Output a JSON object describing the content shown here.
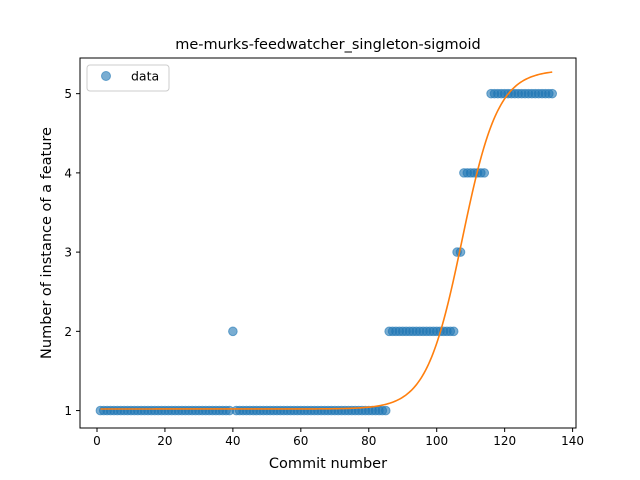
{
  "chart_data": {
    "type": "scatter",
    "title": "me-murks-feedwatcher_singleton-sigmoid",
    "xlabel": "Commit number",
    "ylabel": "Number of instance of a feature",
    "xlim": [
      -5,
      141
    ],
    "ylim": [
      0.78,
      5.45
    ],
    "xticks": [
      0,
      20,
      40,
      60,
      80,
      100,
      120,
      140
    ],
    "yticks": [
      1,
      2,
      3,
      4,
      5
    ],
    "grid": false,
    "legend_position": "top-left",
    "series": [
      {
        "name": "data",
        "kind": "scatter",
        "color": "#1f77b4",
        "segments": [
          {
            "x_from": 1,
            "x_to": 39,
            "y": 1
          },
          {
            "x_from": 41,
            "x_to": 85,
            "y": 1
          },
          {
            "x_from": 86,
            "x_to": 105,
            "y": 2
          },
          {
            "x_from": 106,
            "x_to": 107,
            "y": 3
          },
          {
            "x_from": 108,
            "x_to": 114,
            "y": 4
          },
          {
            "x_from": 116,
            "x_to": 134,
            "y": 5
          }
        ],
        "extra_points": [
          [
            40,
            2
          ]
        ]
      },
      {
        "kind": "line",
        "color": "#ff7f0e",
        "sigmoid": {
          "lower": 1.02,
          "upper": 5.3,
          "midpoint": 107.5,
          "rate": 0.19,
          "x_from": 1,
          "x_to": 134
        }
      }
    ]
  }
}
